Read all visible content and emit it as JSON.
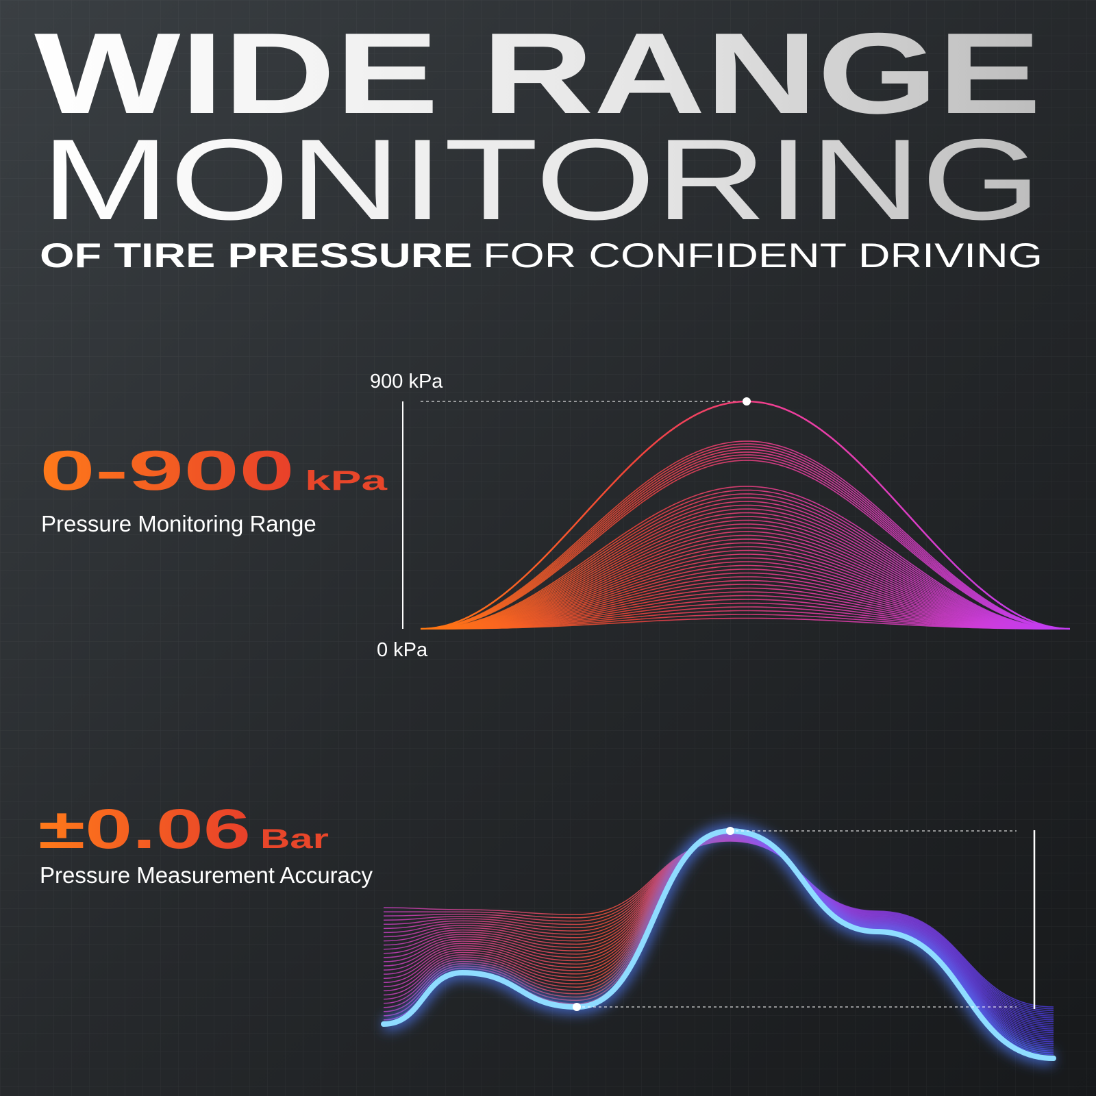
{
  "header": {
    "title_line1": "WIDE RANGE",
    "title_line2": "MONITORING",
    "subtitle_bold": "OF TIRE PRESSURE",
    "subtitle_light": "FOR CONFIDENT DRIVING"
  },
  "range_panel": {
    "value": "0-900",
    "unit": "kPa",
    "caption": "Pressure Monitoring Range",
    "axis_top": "900 kPa",
    "axis_bottom": "0 kPa"
  },
  "accuracy_panel": {
    "value": "±0.06",
    "unit": "Bar",
    "caption": "Pressure Measurement Accuracy"
  }
}
